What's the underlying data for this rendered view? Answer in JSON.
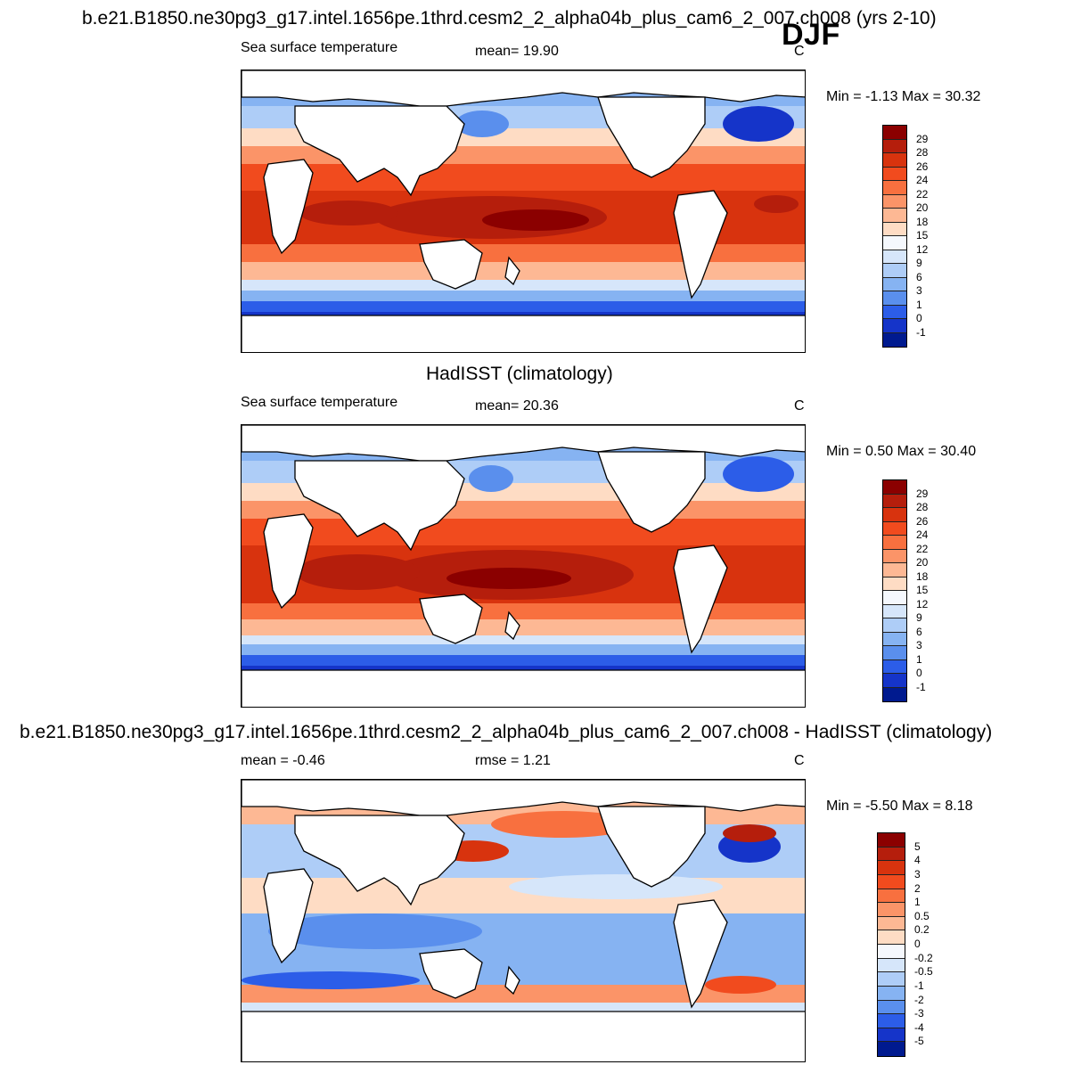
{
  "header": {
    "main_title": "b.e21.B1850.ne30pg3_g17.intel.1656pe.1thrd.cesm2_2_alpha04b_plus_cam6_2_007.ch008 (yrs 2-10)",
    "season": "DJF"
  },
  "panels": [
    {
      "name": "model",
      "title": "",
      "left_label": "Sea surface temperature",
      "center_label": "mean=  19.90",
      "unit": "C",
      "minmax": "Min =  -1.13 Max =  30.32",
      "levels": [
        "29",
        "28",
        "26",
        "24",
        "22",
        "20",
        "18",
        "15",
        "12",
        "9",
        "6",
        "3",
        "1",
        "0",
        "-1"
      ],
      "colors": [
        "#8b0000",
        "#b51e0c",
        "#d8330e",
        "#f14b1e",
        "#f8703f",
        "#fb9468",
        "#fdb894",
        "#fedcc4",
        "#f5f8fd",
        "#d6e6fa",
        "#aecdf7",
        "#86b3f2",
        "#5a8fed",
        "#2c5de8",
        "#1534c9",
        "#001a8f"
      ]
    },
    {
      "name": "obs",
      "title": "HadISST (climatology)",
      "left_label": "Sea surface temperature",
      "center_label": "mean=  20.36",
      "unit": "C",
      "minmax": "Min =   0.50 Max =  30.40",
      "levels": [
        "29",
        "28",
        "26",
        "24",
        "22",
        "20",
        "18",
        "15",
        "12",
        "9",
        "6",
        "3",
        "1",
        "0",
        "-1"
      ],
      "colors": [
        "#8b0000",
        "#b51e0c",
        "#d8330e",
        "#f14b1e",
        "#f8703f",
        "#fb9468",
        "#fdb894",
        "#fedcc4",
        "#f5f8fd",
        "#d6e6fa",
        "#aecdf7",
        "#86b3f2",
        "#5a8fed",
        "#2c5de8",
        "#1534c9",
        "#001a8f"
      ]
    },
    {
      "name": "diff",
      "title": "b.e21.B1850.ne30pg3_g17.intel.1656pe.1thrd.cesm2_2_alpha04b_plus_cam6_2_007.ch008 - HadISST (climatology)",
      "left_label": "mean =  -0.46",
      "center_label": "rmse =   1.21",
      "unit": "C",
      "minmax": "Min =  -5.50 Max =   8.18",
      "levels": [
        "5",
        "4",
        "3",
        "2",
        "1",
        "0.5",
        "0.2",
        "0",
        "-0.2",
        "-0.5",
        "-1",
        "-2",
        "-3",
        "-4",
        "-5"
      ],
      "colors": [
        "#8b0000",
        "#b51e0c",
        "#d8330e",
        "#f14b1e",
        "#f8703f",
        "#fb9468",
        "#fdb894",
        "#fedcc4",
        "#f5f8fd",
        "#d6e6fa",
        "#aecdf7",
        "#86b3f2",
        "#5a8fed",
        "#2c5de8",
        "#1534c9",
        "#001a8f"
      ]
    }
  ]
}
